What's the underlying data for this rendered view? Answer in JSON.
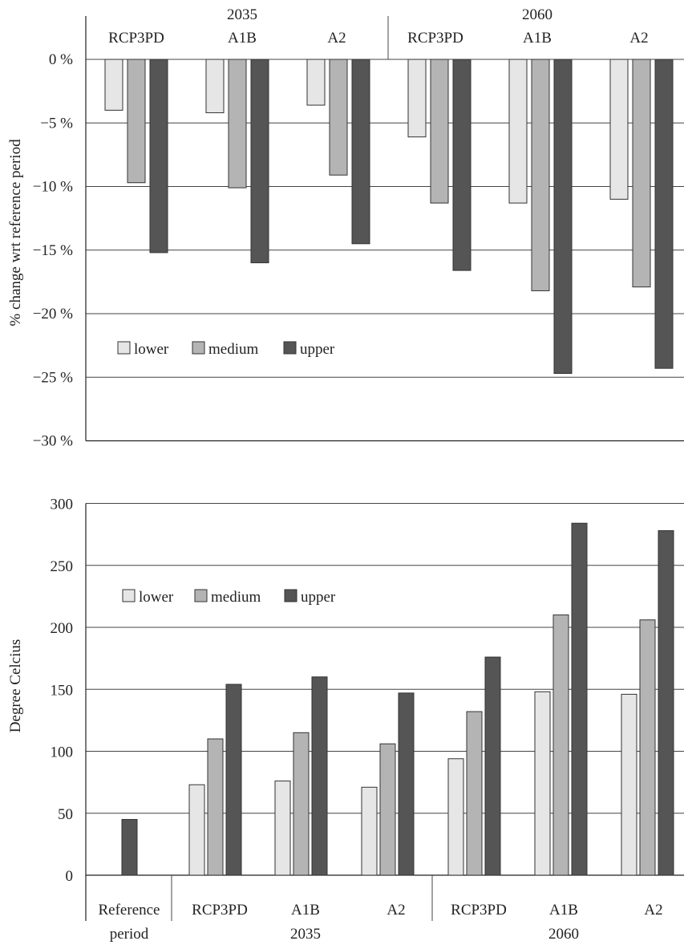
{
  "chart_data": [
    {
      "type": "bar",
      "ylabel": "% change wrt reference period",
      "ylim": [
        -30,
        0
      ],
      "yticks": [
        "0 %",
        "−5 %",
        "−10 %",
        "−15 %",
        "−20 %",
        "−25 %",
        "−30 %"
      ],
      "ytick_values": [
        0,
        -5,
        -10,
        -15,
        -20,
        -25,
        -30
      ],
      "grid": true,
      "legend_position": "left, middle",
      "groups": [
        {
          "label": "2035",
          "categories": [
            "RCP3PD",
            "A1B",
            "A2"
          ]
        },
        {
          "label": "2060",
          "categories": [
            "RCP3PD",
            "A1B",
            "A2"
          ]
        }
      ],
      "categories": [
        "RCP3PD",
        "A1B",
        "A2",
        "RCP3PD",
        "A1B",
        "A2"
      ],
      "series": [
        {
          "name": "lower",
          "color": "#e6e6e6",
          "values": [
            -4.0,
            -4.2,
            -3.6,
            -6.1,
            -11.3,
            -11.0
          ]
        },
        {
          "name": "medium",
          "color": "#b4b4b4",
          "values": [
            -9.7,
            -10.1,
            -9.1,
            -11.3,
            -18.2,
            -17.9
          ]
        },
        {
          "name": "upper",
          "color": "#555555",
          "values": [
            -15.2,
            -16.0,
            -14.5,
            -16.6,
            -24.7,
            -24.3
          ]
        }
      ]
    },
    {
      "type": "bar",
      "ylabel": "Degree Celcius",
      "ylim": [
        0,
        300
      ],
      "yticks": [
        "0",
        "50",
        "100",
        "150",
        "200",
        "250",
        "300"
      ],
      "ytick_values": [
        0,
        50,
        100,
        150,
        200,
        250,
        300
      ],
      "grid": true,
      "legend_position": "top-left",
      "groups": [
        {
          "label": "",
          "categories": [
            "Reference",
            "period"
          ]
        },
        {
          "label": "2035",
          "categories": [
            "RCP3PD",
            "A1B",
            "A2"
          ]
        },
        {
          "label": "2060",
          "categories": [
            "RCP3PD",
            "A1B",
            "A2"
          ]
        }
      ],
      "categories": [
        "Reference period",
        "RCP3PD",
        "A1B",
        "A2",
        "RCP3PD",
        "A1B",
        "A2"
      ],
      "series": [
        {
          "name": "lower",
          "color": "#e6e6e6",
          "values": [
            null,
            73,
            76,
            71,
            94,
            148,
            146
          ]
        },
        {
          "name": "medium",
          "color": "#b4b4b4",
          "values": [
            null,
            110,
            115,
            106,
            132,
            210,
            206
          ]
        },
        {
          "name": "upper",
          "color": "#555555",
          "values": [
            45,
            154,
            160,
            147,
            176,
            284,
            278
          ]
        }
      ]
    }
  ]
}
